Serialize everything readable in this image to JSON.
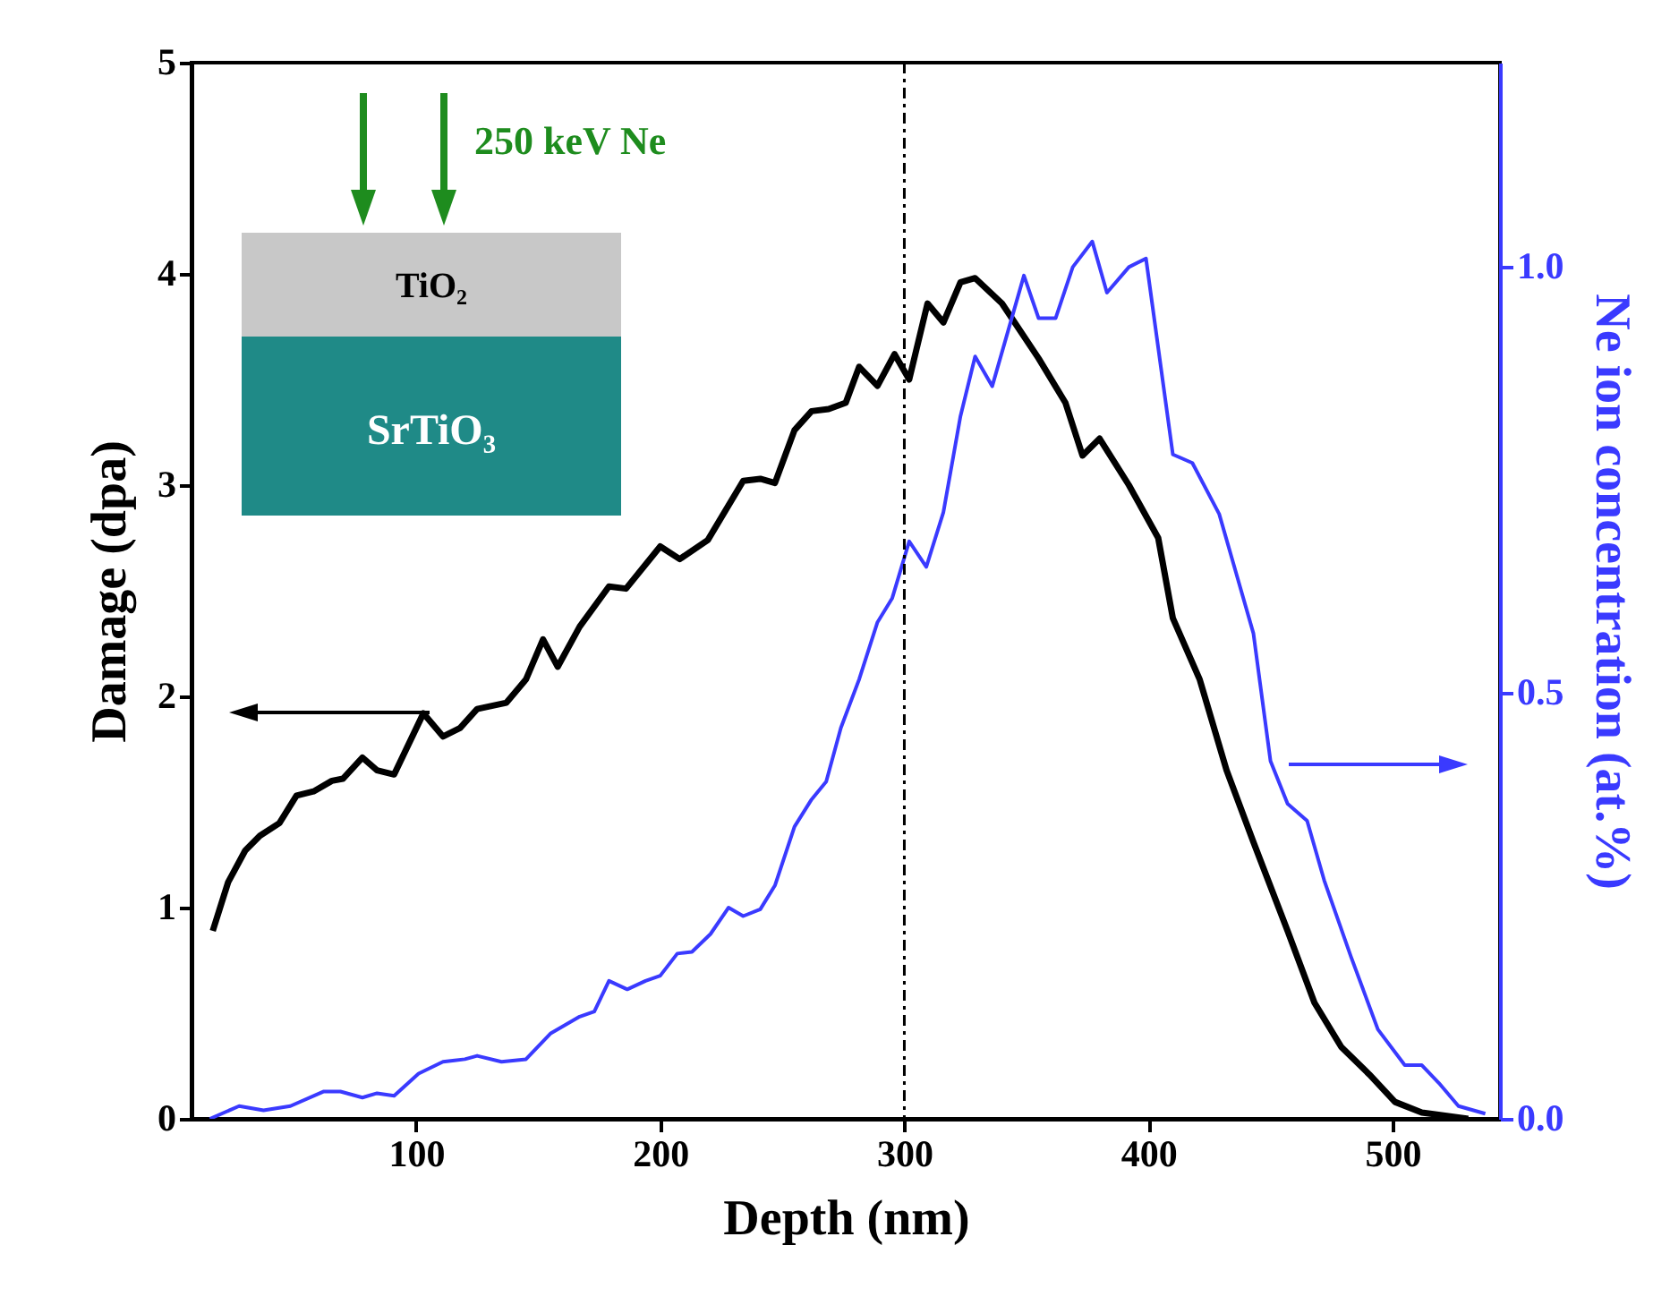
{
  "chart_data": {
    "type": "line",
    "xlabel": "Depth (nm)",
    "ylabel": "Damage (dpa)",
    "y2label": "Ne ion concentration (at.%)",
    "xlim": [
      8,
      544
    ],
    "xticks": [
      100,
      200,
      300,
      400,
      500
    ],
    "ylim": [
      0,
      5
    ],
    "yticks": [
      0,
      1,
      2,
      3,
      4,
      5
    ],
    "y2lim": [
      0,
      1.24
    ],
    "y2ticks": [
      {
        "value": 0,
        "label": "0.0"
      },
      {
        "value": 0.5,
        "label": "0.5"
      },
      {
        "value": 1,
        "label": "1.0"
      }
    ],
    "grid": false,
    "marker": "none",
    "line_style": "solid",
    "series": [
      {
        "color": "#000000",
        "x": [
          16.7,
          23,
          30,
          36,
          44,
          51,
          58,
          65.5,
          70,
          78,
          84,
          91,
          103,
          111,
          118,
          125,
          137,
          145,
          152,
          158,
          167,
          179,
          186,
          200,
          208,
          219.5,
          234,
          241,
          247,
          255,
          262,
          269,
          276,
          281.5,
          289,
          296,
          302,
          309.5,
          316,
          323,
          329,
          340,
          355,
          366,
          373,
          380,
          392,
          404,
          410,
          421,
          432,
          443,
          457,
          468,
          479,
          490.5,
          501,
          512,
          531
        ],
        "values": [
          0.89,
          1.12,
          1.27,
          1.34,
          1.4,
          1.53,
          1.55,
          1.6,
          1.61,
          1.71,
          1.65,
          1.63,
          1.92,
          1.81,
          1.85,
          1.94,
          1.97,
          2.08,
          2.27,
          2.14,
          2.33,
          2.52,
          2.51,
          2.71,
          2.65,
          2.74,
          3.02,
          3.03,
          3.01,
          3.26,
          3.35,
          3.36,
          3.39,
          3.56,
          3.47,
          3.62,
          3.5,
          3.86,
          3.77,
          3.96,
          3.98,
          3.86,
          3.6,
          3.39,
          3.14,
          3.22,
          3.0,
          2.75,
          2.37,
          2.08,
          1.65,
          1.31,
          0.89,
          0.55,
          0.34,
          0.21,
          0.08,
          0.03,
          0
        ]
      },
      {
        "color": "#3a3aff",
        "axis": "y2",
        "x": [
          15.5,
          27.5,
          37.5,
          48.5,
          62,
          69,
          78,
          84,
          91,
          101,
          111,
          120,
          125,
          135,
          145,
          155,
          167,
          173,
          179,
          186.5,
          194,
          200,
          207,
          213,
          220.6,
          228,
          234,
          241,
          247,
          255,
          262,
          268,
          274,
          281.5,
          289,
          295,
          302,
          309,
          316,
          323,
          329,
          336,
          349,
          355,
          362,
          369,
          377,
          383,
          392,
          399,
          410,
          418,
          429,
          436,
          443,
          450,
          457,
          465,
          472,
          483,
          494,
          505,
          512,
          519,
          527,
          538
        ],
        "values": [
          0,
          0.015,
          0.01,
          0.015,
          0.032,
          0.032,
          0.025,
          0.03,
          0.027,
          0.053,
          0.067,
          0.07,
          0.074,
          0.067,
          0.07,
          0.1,
          0.12,
          0.126,
          0.162,
          0.152,
          0.162,
          0.168,
          0.194,
          0.196,
          0.217,
          0.248,
          0.238,
          0.246,
          0.274,
          0.343,
          0.375,
          0.396,
          0.459,
          0.516,
          0.583,
          0.611,
          0.678,
          0.648,
          0.712,
          0.825,
          0.895,
          0.86,
          0.99,
          0.94,
          0.94,
          1.0,
          1.03,
          0.97,
          1.0,
          1.01,
          0.78,
          0.77,
          0.71,
          0.64,
          0.57,
          0.42,
          0.37,
          0.35,
          0.28,
          0.19,
          0.105,
          0.063,
          0.063,
          0.042,
          0.015,
          0.006
        ]
      }
    ],
    "ref_lines": [
      {
        "axis": "x",
        "value": 300,
        "color": "#000000",
        "line_style": "dashed"
      }
    ],
    "annotations": [
      "250 keV Ne",
      "TiO₂",
      "SrTiO₃"
    ]
  }
}
